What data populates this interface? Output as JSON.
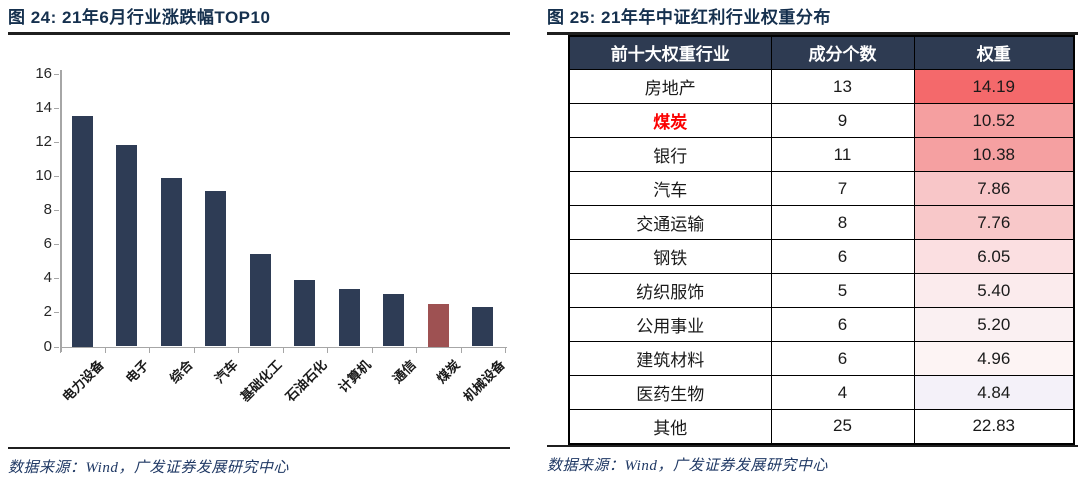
{
  "source_note": "数据来源：Wind，广发证券发展研究中心",
  "colors": {
    "title_text": "#15304e",
    "bar_navy": "#2e3c55",
    "bar_highlight_red": "#9e5152",
    "table_header_bg": "#2e3b52",
    "coal_label_red": "#fb0000",
    "axis_gray": "#a6a6a6",
    "source_navy": "#1f3864"
  },
  "chart_data": [
    {
      "type": "bar",
      "title": "图 24: 21年6月行业涨跌幅TOP10",
      "categories": [
        "电力设备",
        "电子",
        "综合",
        "汽车",
        "基础化工",
        "石油石化",
        "计算机",
        "通信",
        "煤炭",
        "机械设备"
      ],
      "values": [
        13.5,
        11.8,
        9.85,
        9.1,
        5.4,
        3.9,
        3.35,
        3.1,
        2.5,
        2.3
      ],
      "highlight_category": "煤炭",
      "highlight_index": 8,
      "bar_color": "#2e3c55",
      "highlight_color": "#9e5152",
      "xlabel": "",
      "ylabel": "",
      "ylim": [
        0,
        16
      ],
      "yticks": [
        0,
        2,
        4,
        6,
        8,
        10,
        12,
        14,
        16
      ],
      "grid": false,
      "legend": null
    },
    {
      "type": "table",
      "title": "图 25: 21年年中证红利行业权重分布",
      "columns": [
        "前十大权重行业",
        "成分个数",
        "权重"
      ],
      "rows": [
        {
          "industry": "房地产",
          "count": "13",
          "weight": "14.19",
          "weight_bg": "#f4696b",
          "industry_red": false
        },
        {
          "industry": "煤炭",
          "count": "9",
          "weight": "10.52",
          "weight_bg": "#f59fa0",
          "industry_red": true
        },
        {
          "industry": "银行",
          "count": "11",
          "weight": "10.38",
          "weight_bg": "#f5a0a1",
          "industry_red": false
        },
        {
          "industry": "汽车",
          "count": "7",
          "weight": "7.86",
          "weight_bg": "#f8c6c8",
          "industry_red": false
        },
        {
          "industry": "交通运输",
          "count": "8",
          "weight": "7.76",
          "weight_bg": "#f8c8c9",
          "industry_red": false
        },
        {
          "industry": "钢铁",
          "count": "6",
          "weight": "6.05",
          "weight_bg": "#fbdfe1",
          "industry_red": false
        },
        {
          "industry": "纺织服饰",
          "count": "5",
          "weight": "5.40",
          "weight_bg": "#fbebed",
          "industry_red": false
        },
        {
          "industry": "公用事业",
          "count": "6",
          "weight": "5.20",
          "weight_bg": "#faf0f2",
          "industry_red": false
        },
        {
          "industry": "建筑材料",
          "count": "6",
          "weight": "4.96",
          "weight_bg": "#fdf4f4",
          "industry_red": false
        },
        {
          "industry": "医药生物",
          "count": "4",
          "weight": "4.84",
          "weight_bg": "#f4f1f9",
          "industry_red": false
        },
        {
          "industry": "其他",
          "count": "25",
          "weight": "22.83",
          "weight_bg": "#ffffff",
          "industry_red": false
        }
      ]
    }
  ]
}
